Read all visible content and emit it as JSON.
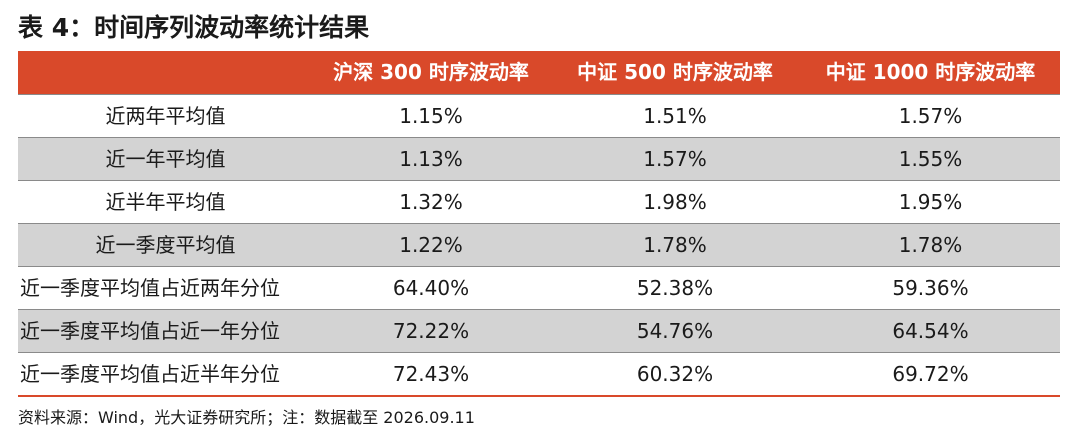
{
  "title": "表 4：时间序列波动率统计结果",
  "table": {
    "headers": [
      "",
      "沪深 300 时序波动率",
      "中证 500 时序波动率",
      "中证 1000 时序波动率"
    ],
    "rows": [
      {
        "label": "近两年平均值",
        "values": [
          "1.15%",
          "1.51%",
          "1.57%"
        ]
      },
      {
        "label": "近一年平均值",
        "values": [
          "1.13%",
          "1.57%",
          "1.55%"
        ]
      },
      {
        "label": "近半年平均值",
        "values": [
          "1.32%",
          "1.98%",
          "1.95%"
        ]
      },
      {
        "label": "近一季度平均值",
        "values": [
          "1.22%",
          "1.78%",
          "1.78%"
        ]
      },
      {
        "label": "近一季度平均值占近两年分位",
        "values": [
          "64.40%",
          "52.38%",
          "59.36%"
        ]
      },
      {
        "label": "近一季度平均值占近一年分位",
        "values": [
          "72.22%",
          "54.76%",
          "64.54%"
        ]
      },
      {
        "label": "近一季度平均值占近半年分位",
        "values": [
          "72.43%",
          "60.32%",
          "69.72%"
        ]
      }
    ]
  },
  "source": "资料来源：Wind，光大证券研究所；注：数据截至 2026.09.11",
  "colors": {
    "header_background": "#d9492a",
    "header_text": "#ffffff",
    "shaded_row": "#d3d3d3"
  }
}
